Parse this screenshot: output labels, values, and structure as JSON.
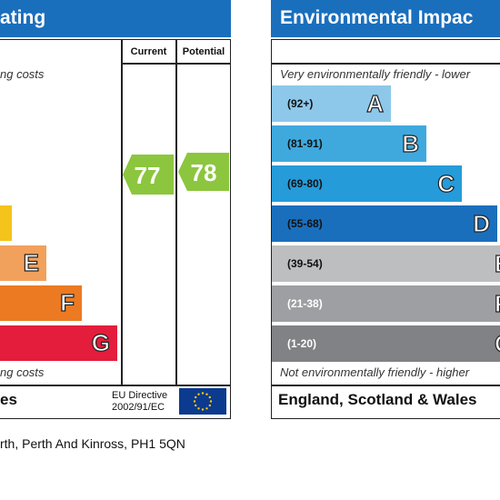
{
  "energy": {
    "title": "ating",
    "col_current": "Current",
    "col_potential": "Potential",
    "top_note": "ng costs",
    "bottom_note": "ng costs",
    "footer": "es",
    "eu_directive": "EU Directive",
    "eu_number": "2002/91/EC"
  },
  "environment": {
    "title": "Environmental Impac",
    "top_note": "Very environmentally friendly - lower",
    "bottom_note": "Not environmentally friendly - higher",
    "footer": "England, Scotland & Wales"
  },
  "address": "rth, Perth And Kinross, PH1 5QN",
  "chart_data": [
    {
      "type": "bar",
      "chart": "energy_efficiency",
      "visible_bands": [
        {
          "letter": "",
          "color": "#f4c31c"
        },
        {
          "letter": "E",
          "color": "#f2a15d"
        },
        {
          "letter": "F",
          "color": "#ec7a22"
        },
        {
          "letter": "G",
          "color": "#e31d3b"
        }
      ],
      "current_rating": 77,
      "potential_rating": 78,
      "rating_color": "#8cc63e"
    },
    {
      "type": "bar",
      "chart": "environmental_impact",
      "bands": [
        {
          "letter": "A",
          "range": "(92+)",
          "color": "#8dc8ea"
        },
        {
          "letter": "B",
          "range": "(81-91)",
          "color": "#3fa9de"
        },
        {
          "letter": "C",
          "range": "(69-80)",
          "color": "#259bd9"
        },
        {
          "letter": "D",
          "range": "(55-68)",
          "color": "#1a6fbd"
        },
        {
          "letter": "E",
          "range": "(39-54)",
          "color": "#bcbec0"
        },
        {
          "letter": "F",
          "range": "(21-38)",
          "color": "#9d9fa2"
        },
        {
          "letter": "G",
          "range": "(1-20)",
          "color": "#808285"
        }
      ]
    }
  ]
}
